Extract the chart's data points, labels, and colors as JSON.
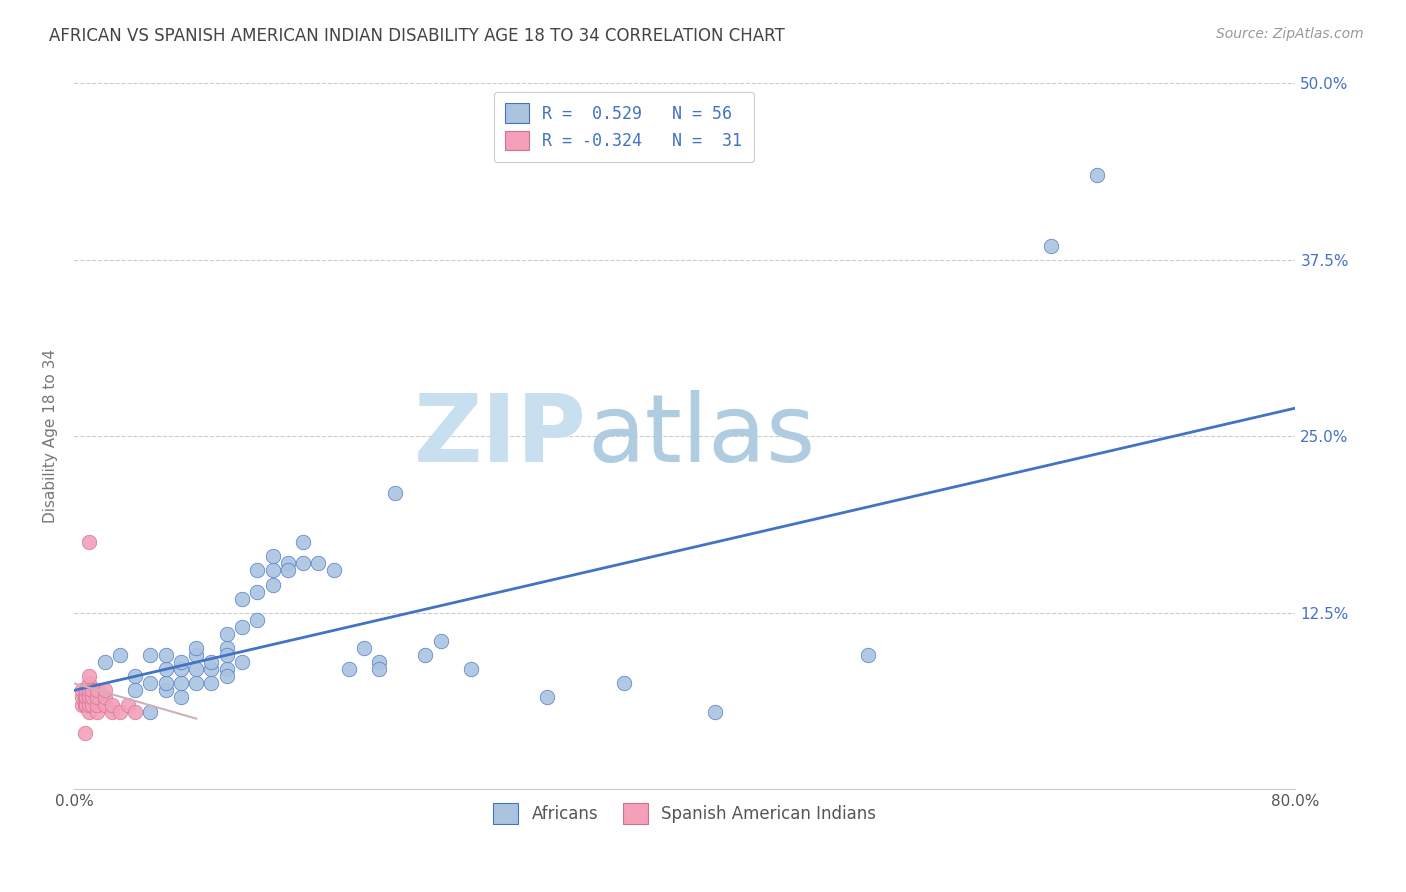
{
  "title": "AFRICAN VS SPANISH AMERICAN INDIAN DISABILITY AGE 18 TO 34 CORRELATION CHART",
  "source": "Source: ZipAtlas.com",
  "ylabel": "Disability Age 18 to 34",
  "xlim": [
    0.0,
    0.8
  ],
  "ylim": [
    0.0,
    0.5
  ],
  "xticks": [
    0.0,
    0.1,
    0.2,
    0.3,
    0.4,
    0.5,
    0.6,
    0.7,
    0.8
  ],
  "xticklabels": [
    "0.0%",
    "",
    "",
    "",
    "",
    "",
    "",
    "",
    "80.0%"
  ],
  "yticks": [
    0.0,
    0.125,
    0.25,
    0.375,
    0.5
  ],
  "yticklabels": [
    "",
    "12.5%",
    "25.0%",
    "37.5%",
    "50.0%"
  ],
  "african_R": 0.529,
  "african_N": 56,
  "spanish_R": -0.324,
  "spanish_N": 31,
  "african_color": "#aac4e0",
  "spanish_color": "#f4a0b8",
  "african_line_color": "#4472c4",
  "spanish_line_color": "#c8a0b0",
  "watermark_zip": "ZIP",
  "watermark_atlas": "atlas",
  "africans_x": [
    0.02,
    0.03,
    0.04,
    0.04,
    0.05,
    0.05,
    0.05,
    0.06,
    0.06,
    0.06,
    0.06,
    0.07,
    0.07,
    0.07,
    0.07,
    0.08,
    0.08,
    0.08,
    0.08,
    0.09,
    0.09,
    0.09,
    0.1,
    0.1,
    0.1,
    0.1,
    0.1,
    0.11,
    0.11,
    0.11,
    0.12,
    0.12,
    0.12,
    0.13,
    0.13,
    0.13,
    0.14,
    0.14,
    0.15,
    0.15,
    0.16,
    0.17,
    0.18,
    0.19,
    0.2,
    0.2,
    0.21,
    0.23,
    0.24,
    0.26,
    0.31,
    0.36,
    0.42,
    0.52,
    0.64,
    0.67
  ],
  "africans_y": [
    0.09,
    0.095,
    0.08,
    0.07,
    0.075,
    0.095,
    0.055,
    0.07,
    0.075,
    0.085,
    0.095,
    0.065,
    0.075,
    0.085,
    0.09,
    0.095,
    0.085,
    0.1,
    0.075,
    0.085,
    0.09,
    0.075,
    0.1,
    0.11,
    0.085,
    0.095,
    0.08,
    0.135,
    0.115,
    0.09,
    0.14,
    0.155,
    0.12,
    0.155,
    0.145,
    0.165,
    0.16,
    0.155,
    0.175,
    0.16,
    0.16,
    0.155,
    0.085,
    0.1,
    0.09,
    0.085,
    0.21,
    0.095,
    0.105,
    0.085,
    0.065,
    0.075,
    0.055,
    0.095,
    0.385,
    0.435
  ],
  "spanish_x": [
    0.005,
    0.005,
    0.005,
    0.007,
    0.007,
    0.008,
    0.008,
    0.008,
    0.01,
    0.01,
    0.01,
    0.01,
    0.01,
    0.01,
    0.012,
    0.012,
    0.012,
    0.015,
    0.015,
    0.015,
    0.015,
    0.02,
    0.02,
    0.02,
    0.025,
    0.025,
    0.03,
    0.035,
    0.04,
    0.01,
    0.007
  ],
  "spanish_y": [
    0.06,
    0.065,
    0.07,
    0.06,
    0.065,
    0.06,
    0.065,
    0.07,
    0.055,
    0.06,
    0.065,
    0.07,
    0.075,
    0.08,
    0.06,
    0.065,
    0.07,
    0.055,
    0.06,
    0.065,
    0.07,
    0.06,
    0.065,
    0.07,
    0.055,
    0.06,
    0.055,
    0.06,
    0.055,
    0.175,
    0.04
  ],
  "african_trend_x": [
    0.0,
    0.8
  ],
  "african_trend_y": [
    0.07,
    0.27
  ],
  "spanish_trend_x": [
    0.0,
    0.08
  ],
  "spanish_trend_y": [
    0.075,
    0.05
  ],
  "legend_african_label": "Africans",
  "legend_spanish_label": "Spanish American Indians",
  "background_color": "#ffffff",
  "grid_color": "#cccccc",
  "title_color": "#333333",
  "axis_label_color": "#777777",
  "tick_color_right": "#4472c4"
}
